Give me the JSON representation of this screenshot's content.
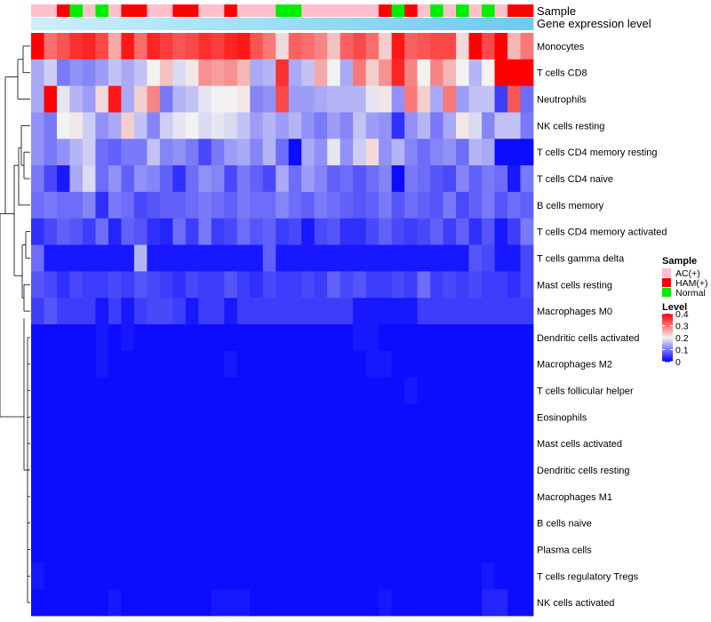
{
  "chart_data": {
    "type": "heatmap",
    "title": "",
    "top_annotations": [
      {
        "name": "Sample",
        "label": "Sample"
      },
      {
        "name": "Gene expression level",
        "label": "Gene expression level"
      }
    ],
    "sample_groups": [
      "AC(+)",
      "AC(+)",
      "HAM(+)",
      "Normal",
      "AC(+)",
      "Normal",
      "AC(+)",
      "HAM(+)",
      "HAM(+)",
      "AC(+)",
      "AC(+)",
      "HAM(+)",
      "HAM(+)",
      "AC(+)",
      "AC(+)",
      "HAM(+)",
      "AC(+)",
      "AC(+)",
      "AC(+)",
      "Normal",
      "Normal",
      "AC(+)",
      "AC(+)",
      "AC(+)",
      "AC(+)",
      "AC(+)",
      "AC(+)",
      "HAM(+)",
      "Normal",
      "HAM(+)",
      "AC(+)",
      "Normal",
      "AC(+)",
      "Normal",
      "AC(+)",
      "Normal",
      "AC(+)",
      "HAM(+)",
      "HAM(+)"
    ],
    "sample_colors": {
      "AC(+)": "#FFC0CB",
      "HAM(+)": "#FF0000",
      "Normal": "#00EE00"
    },
    "expression_bar_colors": [
      "#CDEEFA",
      "#6CCCEE"
    ],
    "rows": [
      "Monocytes",
      "T cells CD8",
      "Neutrophils",
      "NK cells resting",
      "T cells CD4 memory resting",
      "T cells CD4 naive",
      "B cells memory",
      "T cells CD4 memory activated",
      "T cells gamma delta",
      "Mast cells resting",
      "Macrophages M0",
      "Dendritic cells activated",
      "Macrophages M2",
      "T cells follicular helper",
      "Eosinophils",
      "Mast cells activated",
      "Dendritic cells resting",
      "Macrophages M1",
      "B cells naive",
      "Plasma cells",
      "T cells regulatory  Tregs",
      "NK cells activated"
    ],
    "values": [
      [
        0.4,
        0.31,
        0.33,
        0.36,
        0.37,
        0.34,
        0.26,
        0.38,
        0.31,
        0.37,
        0.35,
        0.33,
        0.34,
        0.36,
        0.35,
        0.37,
        0.38,
        0.33,
        0.3,
        0.22,
        0.32,
        0.31,
        0.29,
        0.24,
        0.32,
        0.34,
        0.31,
        0.23,
        0.38,
        0.32,
        0.33,
        0.34,
        0.34,
        0.22,
        0.4,
        0.34,
        0.41,
        0.25,
        0.3
      ],
      [
        0.14,
        0.17,
        0.1,
        0.12,
        0.11,
        0.13,
        0.16,
        0.14,
        0.16,
        0.2,
        0.24,
        0.18,
        0.21,
        0.28,
        0.27,
        0.28,
        0.25,
        0.14,
        0.15,
        0.36,
        0.14,
        0.16,
        0.26,
        0.2,
        0.14,
        0.3,
        0.23,
        0.28,
        0.37,
        0.29,
        0.2,
        0.29,
        0.25,
        0.2,
        0.15,
        0.2,
        0.4,
        0.4,
        0.4
      ],
      [
        0.14,
        0.4,
        0.19,
        0.15,
        0.13,
        0.22,
        0.38,
        0.14,
        0.23,
        0.29,
        0.1,
        0.15,
        0.16,
        0.19,
        0.2,
        0.2,
        0.21,
        0.11,
        0.12,
        0.34,
        0.13,
        0.13,
        0.14,
        0.15,
        0.15,
        0.15,
        0.19,
        0.21,
        0.12,
        0.3,
        0.23,
        0.14,
        0.3,
        0.13,
        0.16,
        0.16,
        0.05,
        0.33,
        0.09
      ],
      [
        0.12,
        0.1,
        0.2,
        0.21,
        0.17,
        0.12,
        0.14,
        0.23,
        0.16,
        0.11,
        0.17,
        0.19,
        0.2,
        0.18,
        0.19,
        0.18,
        0.16,
        0.13,
        0.15,
        0.13,
        0.15,
        0.12,
        0.1,
        0.13,
        0.11,
        0.16,
        0.13,
        0.12,
        0.04,
        0.12,
        0.15,
        0.1,
        0.14,
        0.21,
        0.18,
        0.11,
        0.16,
        0.16,
        0.1
      ],
      [
        0.12,
        0.1,
        0.12,
        0.15,
        0.17,
        0.09,
        0.08,
        0.1,
        0.1,
        0.16,
        0.11,
        0.12,
        0.1,
        0.06,
        0.1,
        0.13,
        0.14,
        0.11,
        0.15,
        0.09,
        0.01,
        0.14,
        0.12,
        0.19,
        0.12,
        0.17,
        0.22,
        0.12,
        0.15,
        0.11,
        0.09,
        0.11,
        0.12,
        0.09,
        0.15,
        0.14,
        0.01,
        0.01,
        0.01
      ],
      [
        0.1,
        0.06,
        0.02,
        0.14,
        0.18,
        0.09,
        0.12,
        0.08,
        0.12,
        0.11,
        0.08,
        0.04,
        0.09,
        0.12,
        0.11,
        0.06,
        0.1,
        0.08,
        0.06,
        0.14,
        0.09,
        0.13,
        0.11,
        0.08,
        0.09,
        0.07,
        0.09,
        0.11,
        0.01,
        0.1,
        0.09,
        0.07,
        0.06,
        0.11,
        0.08,
        0.1,
        0.09,
        0.02,
        0.1
      ],
      [
        0.09,
        0.1,
        0.09,
        0.09,
        0.11,
        0.04,
        0.1,
        0.09,
        0.06,
        0.07,
        0.08,
        0.08,
        0.09,
        0.1,
        0.09,
        0.08,
        0.1,
        0.09,
        0.09,
        0.11,
        0.09,
        0.08,
        0.1,
        0.09,
        0.08,
        0.07,
        0.08,
        0.1,
        0.07,
        0.09,
        0.08,
        0.07,
        0.1,
        0.06,
        0.08,
        0.1,
        0.07,
        0.09,
        0.08
      ],
      [
        0.04,
        0.06,
        0.08,
        0.07,
        0.05,
        0.09,
        0.03,
        0.08,
        0.07,
        0.04,
        0.03,
        0.09,
        0.05,
        0.1,
        0.05,
        0.06,
        0.09,
        0.07,
        0.08,
        0.05,
        0.06,
        0.02,
        0.06,
        0.07,
        0.04,
        0.04,
        0.06,
        0.08,
        0.06,
        0.05,
        0.06,
        0.08,
        0.05,
        0.08,
        0.04,
        0.07,
        0.02,
        0.05,
        0.1
      ],
      [
        0.09,
        0.02,
        0.02,
        0.02,
        0.02,
        0.02,
        0.02,
        0.02,
        0.15,
        0.02,
        0.02,
        0.02,
        0.02,
        0.02,
        0.02,
        0.02,
        0.02,
        0.02,
        0.08,
        0.02,
        0.02,
        0.02,
        0.02,
        0.02,
        0.02,
        0.02,
        0.02,
        0.02,
        0.02,
        0.02,
        0.02,
        0.02,
        0.02,
        0.02,
        0.07,
        0.06,
        0.02,
        0.02,
        0.06
      ],
      [
        0.07,
        0.06,
        0.04,
        0.06,
        0.05,
        0.05,
        0.06,
        0.05,
        0.07,
        0.06,
        0.05,
        0.04,
        0.06,
        0.05,
        0.05,
        0.07,
        0.05,
        0.04,
        0.06,
        0.05,
        0.05,
        0.06,
        0.05,
        0.08,
        0.06,
        0.07,
        0.05,
        0.05,
        0.06,
        0.05,
        0.09,
        0.05,
        0.06,
        0.05,
        0.06,
        0.05,
        0.05,
        0.04,
        0.06
      ],
      [
        0.05,
        0.07,
        0.05,
        0.05,
        0.05,
        0.02,
        0.05,
        0.02,
        0.05,
        0.06,
        0.06,
        0.05,
        0.02,
        0.05,
        0.05,
        0.02,
        0.05,
        0.05,
        0.05,
        0.05,
        0.05,
        0.05,
        0.05,
        0.05,
        0.05,
        0.02,
        0.02,
        0.02,
        0.02,
        0.02,
        0.05,
        0.05,
        0.05,
        0.05,
        0.05,
        0.05,
        0.05,
        0.05,
        0.05
      ],
      [
        0.01,
        0.01,
        0.01,
        0.01,
        0.01,
        0.02,
        0.01,
        0.02,
        0.01,
        0.01,
        0.01,
        0.01,
        0.01,
        0.01,
        0.01,
        0.01,
        0.01,
        0.01,
        0.01,
        0.01,
        0.01,
        0.01,
        0.01,
        0.01,
        0.01,
        0.02,
        0.02,
        0.01,
        0.01,
        0.01,
        0.01,
        0.01,
        0.01,
        0.01,
        0.01,
        0.01,
        0.01,
        0.01,
        0.01
      ],
      [
        0.01,
        0.01,
        0.01,
        0.01,
        0.01,
        0.02,
        0.01,
        0.01,
        0.01,
        0.01,
        0.01,
        0.01,
        0.01,
        0.01,
        0.01,
        0.02,
        0.01,
        0.01,
        0.01,
        0.01,
        0.01,
        0.01,
        0.01,
        0.01,
        0.01,
        0.01,
        0.02,
        0.02,
        0.01,
        0.01,
        0.01,
        0.01,
        0.01,
        0.01,
        0.01,
        0.01,
        0.01,
        0.01,
        0.01
      ],
      [
        0.01,
        0.01,
        0.01,
        0.01,
        0.01,
        0.01,
        0.01,
        0.01,
        0.01,
        0.01,
        0.01,
        0.01,
        0.01,
        0.01,
        0.01,
        0.01,
        0.01,
        0.01,
        0.01,
        0.01,
        0.01,
        0.01,
        0.01,
        0.01,
        0.01,
        0.01,
        0.01,
        0.01,
        0.01,
        0.02,
        0.01,
        0.01,
        0.01,
        0.01,
        0.01,
        0.01,
        0.01,
        0.01,
        0.01
      ],
      [
        0.01,
        0.01,
        0.01,
        0.01,
        0.01,
        0.01,
        0.01,
        0.01,
        0.01,
        0.01,
        0.01,
        0.01,
        0.01,
        0.01,
        0.01,
        0.01,
        0.01,
        0.01,
        0.01,
        0.01,
        0.01,
        0.01,
        0.01,
        0.01,
        0.01,
        0.01,
        0.01,
        0.01,
        0.01,
        0.01,
        0.01,
        0.01,
        0.01,
        0.01,
        0.01,
        0.01,
        0.01,
        0.01,
        0.01
      ],
      [
        0.01,
        0.01,
        0.01,
        0.01,
        0.01,
        0.01,
        0.01,
        0.01,
        0.01,
        0.01,
        0.01,
        0.01,
        0.01,
        0.01,
        0.01,
        0.01,
        0.01,
        0.01,
        0.01,
        0.01,
        0.01,
        0.01,
        0.01,
        0.01,
        0.01,
        0.01,
        0.01,
        0.01,
        0.01,
        0.01,
        0.01,
        0.01,
        0.01,
        0.01,
        0.01,
        0.01,
        0.01,
        0.01,
        0.01
      ],
      [
        0.01,
        0.01,
        0.01,
        0.01,
        0.01,
        0.01,
        0.01,
        0.01,
        0.01,
        0.01,
        0.01,
        0.01,
        0.01,
        0.01,
        0.01,
        0.01,
        0.01,
        0.01,
        0.01,
        0.01,
        0.01,
        0.01,
        0.01,
        0.01,
        0.01,
        0.01,
        0.01,
        0.01,
        0.01,
        0.01,
        0.01,
        0.01,
        0.01,
        0.01,
        0.01,
        0.01,
        0.01,
        0.01,
        0.01
      ],
      [
        0.01,
        0.01,
        0.01,
        0.01,
        0.01,
        0.01,
        0.01,
        0.01,
        0.01,
        0.01,
        0.01,
        0.01,
        0.01,
        0.01,
        0.01,
        0.01,
        0.01,
        0.01,
        0.01,
        0.01,
        0.01,
        0.01,
        0.01,
        0.01,
        0.01,
        0.01,
        0.01,
        0.01,
        0.01,
        0.01,
        0.01,
        0.01,
        0.01,
        0.01,
        0.01,
        0.01,
        0.01,
        0.01,
        0.01
      ],
      [
        0.01,
        0.01,
        0.01,
        0.01,
        0.01,
        0.01,
        0.01,
        0.01,
        0.01,
        0.01,
        0.01,
        0.01,
        0.01,
        0.01,
        0.01,
        0.01,
        0.01,
        0.01,
        0.01,
        0.01,
        0.01,
        0.01,
        0.01,
        0.01,
        0.01,
        0.01,
        0.01,
        0.01,
        0.01,
        0.01,
        0.01,
        0.01,
        0.01,
        0.01,
        0.01,
        0.01,
        0.01,
        0.01,
        0.01
      ],
      [
        0.01,
        0.01,
        0.01,
        0.01,
        0.01,
        0.01,
        0.01,
        0.01,
        0.01,
        0.01,
        0.01,
        0.01,
        0.01,
        0.01,
        0.01,
        0.01,
        0.01,
        0.01,
        0.01,
        0.01,
        0.01,
        0.01,
        0.01,
        0.01,
        0.01,
        0.01,
        0.01,
        0.01,
        0.01,
        0.01,
        0.01,
        0.01,
        0.01,
        0.01,
        0.01,
        0.01,
        0.01,
        0.01,
        0.01
      ],
      [
        0.02,
        0.01,
        0.01,
        0.01,
        0.01,
        0.01,
        0.01,
        0.01,
        0.01,
        0.01,
        0.01,
        0.01,
        0.01,
        0.01,
        0.01,
        0.01,
        0.01,
        0.01,
        0.01,
        0.01,
        0.01,
        0.01,
        0.01,
        0.01,
        0.01,
        0.01,
        0.01,
        0.01,
        0.01,
        0.01,
        0.01,
        0.01,
        0.01,
        0.01,
        0.01,
        0.02,
        0.01,
        0.01,
        0.01
      ],
      [
        0.01,
        0.01,
        0.01,
        0.01,
        0.01,
        0.01,
        0.02,
        0.01,
        0.01,
        0.01,
        0.01,
        0.01,
        0.01,
        0.01,
        0.02,
        0.02,
        0.02,
        0.01,
        0.01,
        0.01,
        0.01,
        0.01,
        0.01,
        0.01,
        0.01,
        0.01,
        0.01,
        0.02,
        0.01,
        0.01,
        0.01,
        0.01,
        0.01,
        0.01,
        0.01,
        0.03,
        0.03,
        0.01,
        0.01
      ]
    ],
    "color_scale": {
      "min": 0,
      "mid": 0.2,
      "max": 0.4,
      "low": "#0000FF",
      "mid_color": "#F2F2F2",
      "high": "#FF0000"
    },
    "legends": {
      "sample": {
        "title": "Sample",
        "entries": [
          "AC(+)",
          "HAM(+)",
          "Normal"
        ]
      },
      "level": {
        "title": "Level",
        "ticks": [
          "0.4",
          "0.3",
          "0.2",
          "0.1",
          "0"
        ]
      }
    },
    "dendrogram": "hierarchical row clustering (left)"
  }
}
